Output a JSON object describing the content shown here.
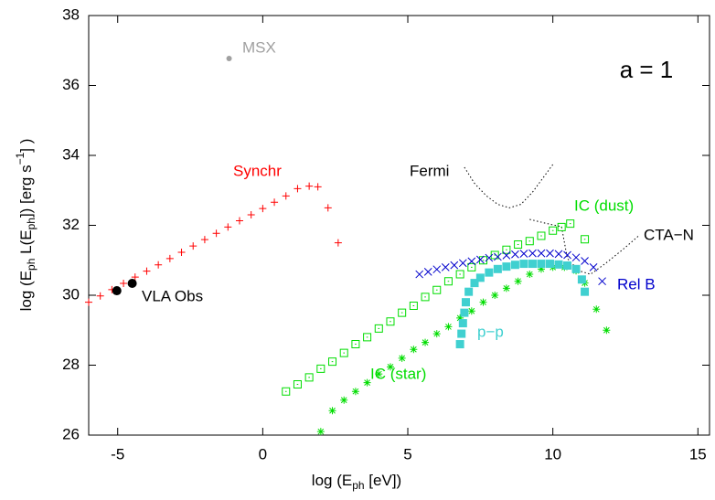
{
  "chart_data": {
    "type": "scatter",
    "xlabel": [
      "log (E",
      "ph",
      " [eV])"
    ],
    "ylabel": [
      "log (E",
      "ph",
      " L(E",
      "ph",
      "]) [erg s",
      "−1",
      "] )"
    ],
    "annotations": [
      "a = 1"
    ],
    "xlim": [
      -6,
      15.4
    ],
    "ylim": [
      26,
      38
    ],
    "xticks": [
      -5,
      0,
      5,
      10,
      15
    ],
    "yticks": [
      26,
      28,
      30,
      32,
      34,
      36,
      38
    ],
    "grid": false,
    "series": [
      {
        "name": "Synchr",
        "color": "#ff0000",
        "marker": "plus",
        "x": [
          -6,
          -5.6,
          -5.2,
          -4.8,
          -4.4,
          -4,
          -3.6,
          -3.2,
          -2.8,
          -2.4,
          -2,
          -1.6,
          -1.2,
          -0.8,
          -0.4,
          0,
          0.4,
          0.8,
          1.2,
          1.6,
          1.9,
          2.25,
          2.6
        ],
        "values": [
          29.8,
          29.98,
          30.16,
          30.34,
          30.52,
          30.69,
          30.87,
          31.05,
          31.23,
          31.41,
          31.59,
          31.77,
          31.95,
          32.13,
          32.3,
          32.48,
          32.66,
          32.84,
          33.05,
          33.12,
          33.1,
          32.5,
          31.5
        ]
      },
      {
        "name": "VLA Obs",
        "color": "#000000",
        "marker": "dot",
        "x": [
          -5.03,
          -4.5
        ],
        "values": [
          30.13,
          30.34
        ]
      },
      {
        "name": "MSX",
        "color": "#a0a0a0",
        "marker": "smalldot",
        "x": [
          -1.16
        ],
        "values": [
          36.77
        ]
      },
      {
        "name": "Fermi",
        "color": "#000000",
        "marker": "dotted",
        "x": [
          6.95,
          7.3,
          7.7,
          8.1,
          8.5,
          8.9,
          9.3,
          9.7,
          10.0
        ],
        "values": [
          33.66,
          33.2,
          32.85,
          32.6,
          32.5,
          32.6,
          32.95,
          33.4,
          33.74
        ]
      },
      {
        "name": "CTA−N",
        "color": "#000000",
        "marker": "dotted",
        "x": [
          9.2,
          9.8,
          10.3,
          10.5,
          10.9,
          11.3,
          11.8,
          12.4,
          13.0
        ],
        "values": [
          32.17,
          32.05,
          31.96,
          31.05,
          30.7,
          30.6,
          30.9,
          31.3,
          31.73
        ]
      },
      {
        "name": "IC (dust)",
        "color": "#00dd00",
        "marker": "square",
        "x": [
          0.8,
          1.2,
          1.6,
          2.0,
          2.4,
          2.8,
          3.2,
          3.6,
          4.0,
          4.4,
          4.8,
          5.2,
          5.6,
          6.0,
          6.4,
          6.8,
          7.2,
          7.6,
          8.0,
          8.4,
          8.8,
          9.2,
          9.6,
          10.0,
          10.3,
          10.6,
          11.1
        ],
        "values": [
          27.25,
          27.45,
          27.65,
          27.9,
          28.1,
          28.35,
          28.6,
          28.8,
          29.05,
          29.25,
          29.5,
          29.7,
          29.95,
          30.15,
          30.4,
          30.6,
          30.8,
          31.0,
          31.15,
          31.3,
          31.45,
          31.55,
          31.7,
          31.85,
          31.95,
          32.05,
          31.6
        ]
      },
      {
        "name": "IC (star)",
        "color": "#00dd00",
        "marker": "star",
        "x": [
          2.0,
          2.4,
          2.8,
          3.2,
          3.6,
          4.0,
          4.4,
          4.8,
          5.2,
          5.6,
          6.0,
          6.4,
          6.8,
          7.2,
          7.6,
          8.0,
          8.4,
          8.8,
          9.2,
          9.6,
          10.0,
          10.4,
          10.8,
          11.1,
          11.5,
          11.85
        ],
        "values": [
          26.1,
          26.7,
          27.0,
          27.25,
          27.5,
          27.75,
          27.95,
          28.2,
          28.45,
          28.65,
          28.9,
          29.1,
          29.35,
          29.55,
          29.8,
          30.0,
          30.2,
          30.4,
          30.6,
          30.75,
          30.8,
          30.8,
          30.7,
          30.35,
          29.6,
          29.0
        ]
      },
      {
        "name": "Rel B",
        "color": "#0000cc",
        "marker": "cross",
        "x": [
          5.4,
          5.7,
          6.0,
          6.3,
          6.6,
          6.9,
          7.2,
          7.5,
          7.8,
          8.1,
          8.4,
          8.7,
          9.0,
          9.3,
          9.6,
          9.9,
          10.2,
          10.5,
          10.8,
          11.1,
          11.4,
          11.7
        ],
        "values": [
          30.6,
          30.67,
          30.74,
          30.8,
          30.86,
          30.92,
          30.97,
          31.02,
          31.07,
          31.1,
          31.14,
          31.17,
          31.19,
          31.2,
          31.2,
          31.2,
          31.18,
          31.15,
          31.08,
          30.98,
          30.8,
          30.4
        ]
      },
      {
        "name": "p−p",
        "color": "#40d0d0",
        "marker": "fsquare",
        "x": [
          6.8,
          6.85,
          6.9,
          6.95,
          7.0,
          7.1,
          7.3,
          7.5,
          7.8,
          8.1,
          8.4,
          8.7,
          9.0,
          9.3,
          9.6,
          9.9,
          10.2,
          10.5,
          10.8,
          11.0,
          11.1
        ],
        "values": [
          28.6,
          28.9,
          29.2,
          29.5,
          29.8,
          30.1,
          30.35,
          30.5,
          30.65,
          30.75,
          30.82,
          30.87,
          30.9,
          30.9,
          30.9,
          30.9,
          30.88,
          30.85,
          30.75,
          30.45,
          30.1
        ]
      }
    ]
  }
}
